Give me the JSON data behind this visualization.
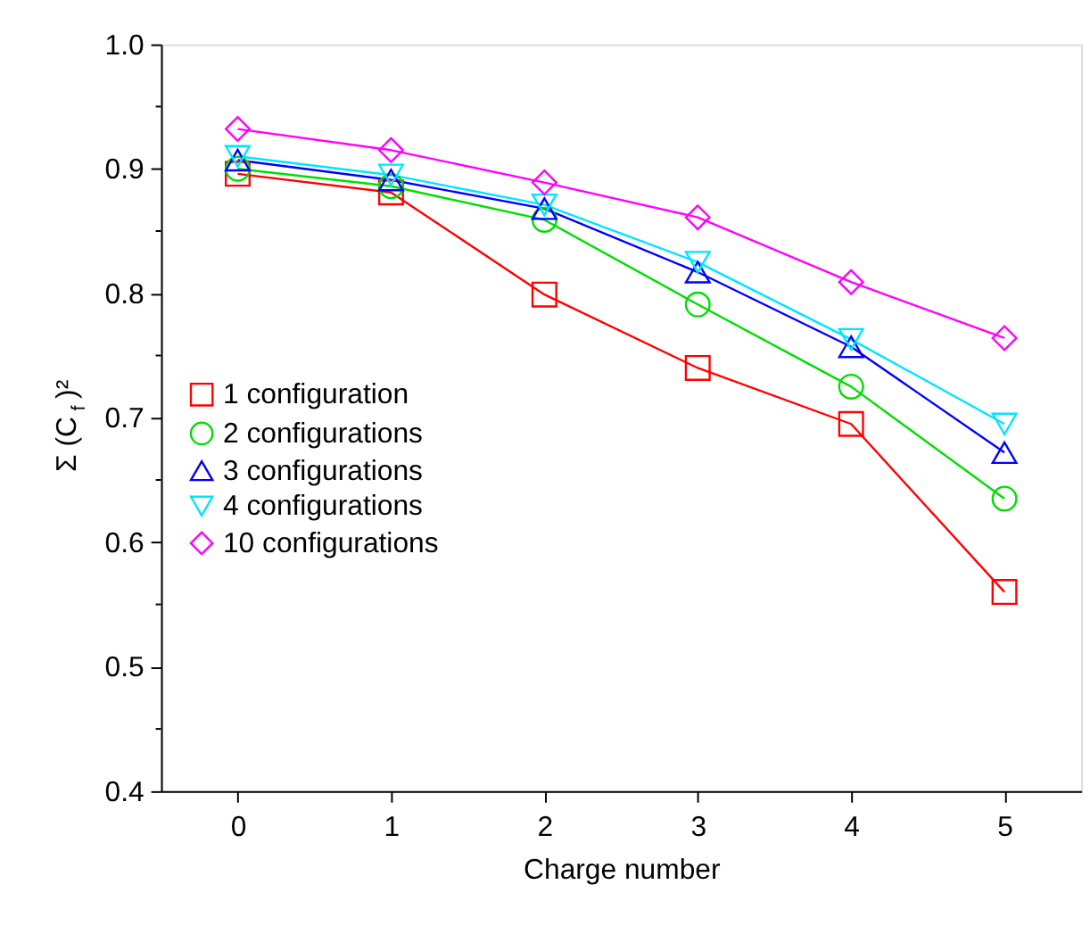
{
  "chart_data": {
    "type": "line",
    "xlabel": "Charge number",
    "ylabel": "Σ (C$_{f}$)²",
    "x": [
      0,
      1,
      2,
      3,
      4,
      5
    ],
    "xlim": [
      -0.5,
      5.5
    ],
    "xticks": [
      0,
      1,
      2,
      3,
      4,
      5
    ],
    "ylim": [
      0.4,
      1.0
    ],
    "yticks": [
      0.4,
      {
        "value": 0.45,
        "label": null
      },
      0.5,
      {
        "value": 0.55,
        "label": null
      },
      0.6,
      {
        "value": 0.65,
        "label": null
      },
      0.7,
      {
        "value": 0.75,
        "label": null
      },
      0.8,
      {
        "value": 0.85,
        "label": null
      },
      0.9,
      {
        "value": 0.95,
        "label": null
      },
      {
        "value": 1,
        "label": "1.0"
      }
    ],
    "grid": false,
    "legend": "left",
    "line_style": "solid",
    "series": [
      {
        "name": "1 configuration",
        "color": "#ff0000",
        "marker": "square",
        "values": [
          0.896,
          0.881,
          0.799,
          0.74,
          0.695,
          0.56
        ]
      },
      {
        "name": "2 configurations",
        "color": "#00dd00",
        "marker": "circle",
        "values": [
          0.9,
          0.886,
          0.859,
          0.791,
          0.725,
          0.635
        ]
      },
      {
        "name": "3 configurations",
        "color": "#0000ff",
        "marker": "triangle",
        "values": [
          0.907,
          0.891,
          0.868,
          0.817,
          0.757,
          0.672
        ]
      },
      {
        "name": "4 configurations",
        "color": "#00e5ff",
        "marker": "triangle-down",
        "values": [
          0.91,
          0.895,
          0.871,
          0.825,
          0.763,
          0.695
        ]
      },
      {
        "name": "10 configurations",
        "color": "#ff00ff",
        "marker": "diamond",
        "values": [
          0.932,
          0.915,
          0.889,
          0.861,
          0.809,
          0.764
        ]
      }
    ]
  }
}
